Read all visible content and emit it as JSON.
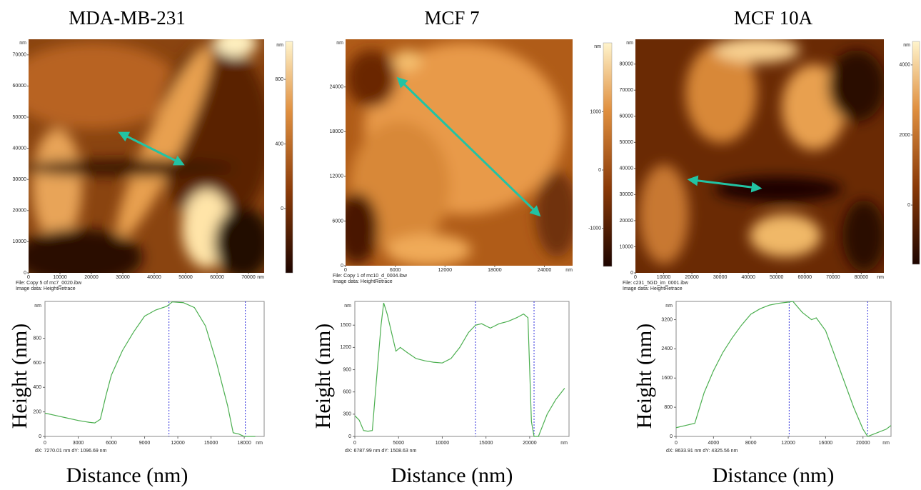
{
  "chart_data": [
    {
      "type": "line",
      "title": "MDA-MB-231",
      "unit": "nm",
      "xlabel": "Distance (nm)",
      "ylabel": "Height (nm)",
      "color": "#4caf50",
      "image": {
        "file": "File: Copy 5 of mc7_0020.ibw",
        "image_data": "Image data: HeightRetrace",
        "xlim": [
          0,
          75000
        ],
        "ylim": [
          0,
          75000
        ],
        "xticks": [
          0,
          10000,
          20000,
          30000,
          40000,
          50000,
          60000,
          70000
        ],
        "yticks": [
          0,
          10000,
          20000,
          30000,
          40000,
          50000,
          60000,
          70000
        ],
        "colorbar_lim": [
          -398,
          1035
        ],
        "colorbar_ticks": [
          0,
          400,
          800
        ]
      },
      "x": [
        0,
        1000,
        2000,
        3000,
        4000,
        4500,
        5000,
        5500,
        6000,
        7000,
        8000,
        9000,
        10000,
        11000,
        11500,
        12500,
        13500,
        14500,
        15500,
        16500,
        17000,
        17500,
        18000,
        19000
      ],
      "values": [
        190,
        170,
        150,
        130,
        115,
        110,
        140,
        330,
        500,
        700,
        850,
        980,
        1030,
        1060,
        1096,
        1090,
        1050,
        900,
        600,
        250,
        30,
        20,
        0,
        0
      ],
      "xlim": [
        0,
        19800
      ],
      "ylim": [
        0,
        1100
      ],
      "xticks": [
        0,
        3000,
        6000,
        9000,
        12000,
        15000,
        18000
      ],
      "yticks": [
        0,
        200,
        400,
        600,
        800
      ],
      "cursors": [
        11200,
        18100
      ],
      "footnote": "dX: 7270.01 nm dY: 1096.69 nm"
    },
    {
      "type": "line",
      "title": "MCF 7",
      "unit": "nm",
      "xlabel": "Distance (nm)",
      "ylabel": "Height (nm)",
      "color": "#4caf50",
      "image": {
        "file": "File: Copy 1 of mc10_d_0004.ibw",
        "image_data": "Image data: HeightRetrace",
        "xlim": [
          0,
          27400
        ],
        "ylim": [
          0,
          30400
        ],
        "xticks": [
          0,
          6000,
          12000,
          18000,
          24000
        ],
        "yticks": [
          0,
          6000,
          12000,
          18000,
          24000
        ],
        "colorbar_lim": [
          -1656,
          2184
        ],
        "colorbar_ticks": [
          -1000,
          0,
          1000
        ]
      },
      "x": [
        0,
        500,
        1000,
        1500,
        2000,
        2500,
        3000,
        3300,
        3700,
        4200,
        4700,
        5200,
        6000,
        7000,
        8000,
        9000,
        10000,
        11000,
        12000,
        13000,
        13800,
        14500,
        15500,
        16500,
        17500,
        18500,
        19300,
        19800,
        20200,
        20500,
        21000,
        21500,
        22000,
        23000,
        24000
      ],
      "values": [
        280,
        220,
        80,
        70,
        80,
        800,
        1500,
        1800,
        1650,
        1400,
        1150,
        1200,
        1130,
        1050,
        1020,
        1000,
        990,
        1050,
        1200,
        1400,
        1500,
        1520,
        1460,
        1520,
        1550,
        1600,
        1650,
        1600,
        200,
        0,
        0,
        150,
        300,
        500,
        650
      ],
      "xlim": [
        0,
        24500
      ],
      "ylim": [
        0,
        1820
      ],
      "xticks": [
        0,
        5000,
        10000,
        15000,
        20000
      ],
      "yticks": [
        0,
        300,
        600,
        900,
        1200,
        1500
      ],
      "cursors": [
        13800,
        20500
      ],
      "footnote": "dX: 6787.99 nm dY: 1508.63 nm"
    },
    {
      "type": "line",
      "title": "MCF 10A",
      "unit": "nm",
      "xlabel": "Distance (nm)",
      "ylabel": "Height (nm)",
      "color": "#4caf50",
      "image": {
        "file": "File: c231_5GD_im_0001.ibw",
        "image_data": "Image data: HeightRetrace",
        "xlim": [
          0,
          88000
        ],
        "ylim": [
          0,
          89500
        ],
        "xticks": [
          0,
          10000,
          20000,
          30000,
          40000,
          50000,
          60000,
          70000,
          80000
        ],
        "yticks": [
          0,
          10000,
          20000,
          30000,
          40000,
          50000,
          60000,
          70000,
          80000
        ],
        "colorbar_lim": [
          -1690,
          4670
        ],
        "colorbar_ticks": [
          0,
          2000,
          4000
        ]
      },
      "x": [
        0,
        1000,
        2000,
        3000,
        4000,
        5000,
        6000,
        7000,
        8000,
        9000,
        10000,
        11000,
        12000,
        12500,
        13500,
        14500,
        15000,
        16000,
        17000,
        18000,
        19000,
        20000,
        20500,
        21500,
        22500,
        23000
      ],
      "values": [
        240,
        300,
        360,
        1200,
        1800,
        2300,
        2700,
        3050,
        3350,
        3500,
        3600,
        3650,
        3680,
        3700,
        3400,
        3200,
        3250,
        2900,
        2200,
        1500,
        800,
        200,
        0,
        100,
        200,
        300
      ],
      "xlim": [
        0,
        23000
      ],
      "ylim": [
        0,
        3700
      ],
      "xticks": [
        0,
        4000,
        8000,
        12000,
        16000,
        20000
      ],
      "yticks": [
        0,
        800,
        1600,
        2400,
        3200
      ],
      "cursors": [
        12100,
        20500
      ],
      "footnote": "dX: 8633.91 nm dY: 4325.56 nm"
    }
  ]
}
